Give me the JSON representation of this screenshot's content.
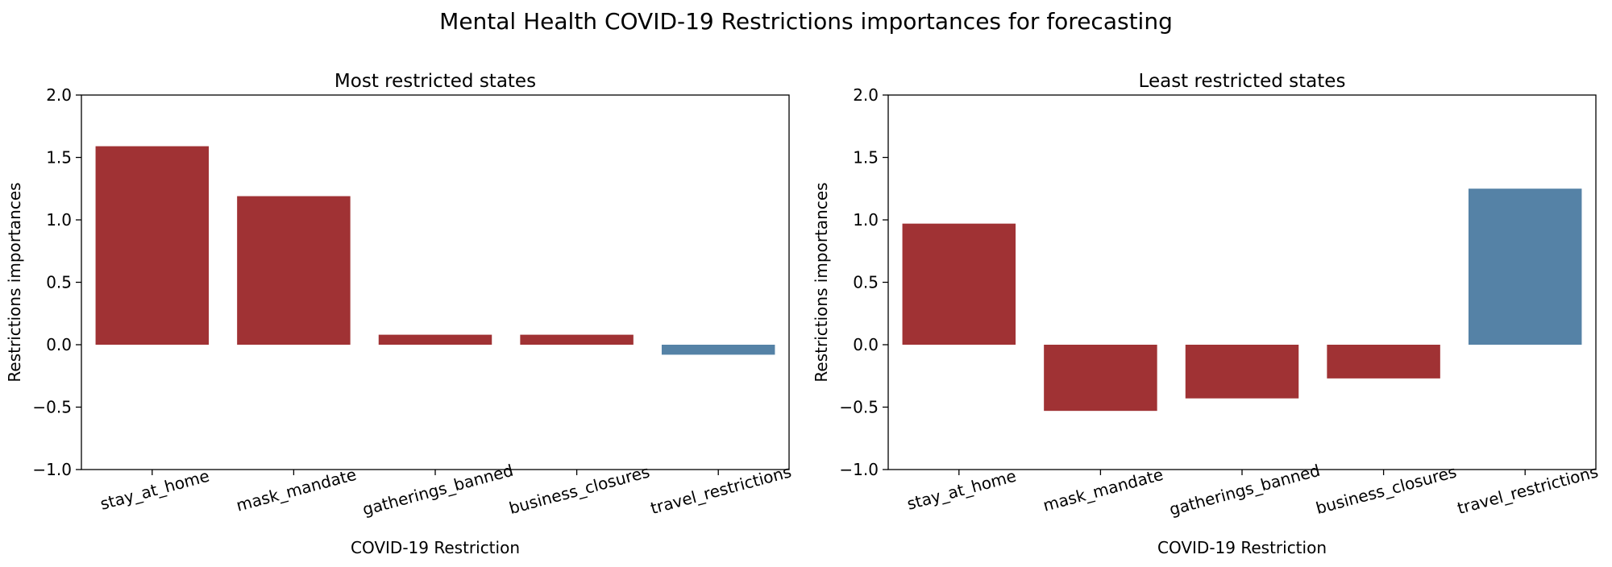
{
  "figure": {
    "suptitle": "Mental Health COVID-19 Restrictions importances for forecasting"
  },
  "colors": {
    "positive_highlight": "#a03234",
    "negative_highlight": "#5582a6",
    "axes": "#000000",
    "background": "#ffffff"
  },
  "chart_data": [
    {
      "type": "bar",
      "title": "Most restricted states",
      "xlabel": "COVID-19 Restriction",
      "ylabel": "Restrictions importances",
      "categories": [
        "stay_at_home",
        "mask_mandate",
        "gatherings_banned",
        "business_closures",
        "travel_restrictions"
      ],
      "values": [
        1.59,
        1.19,
        0.08,
        0.08,
        -0.08
      ],
      "bar_colors": [
        "#a03234",
        "#a03234",
        "#a03234",
        "#a03234",
        "#5582a6"
      ],
      "ylim": [
        -1.0,
        2.0
      ],
      "yticks": [
        -1.0,
        -0.5,
        0.0,
        0.5,
        1.0,
        1.5,
        2.0
      ],
      "ytick_labels": [
        "−1.0",
        "−0.5",
        "0.0",
        "0.5",
        "1.0",
        "1.5",
        "2.0"
      ],
      "xtick_rotation_deg": 15,
      "grid": false,
      "legend": "none"
    },
    {
      "type": "bar",
      "title": "Least restricted states",
      "xlabel": "COVID-19 Restriction",
      "ylabel": "Restrictions importances",
      "categories": [
        "stay_at_home",
        "mask_mandate",
        "gatherings_banned",
        "business_closures",
        "travel_restrictions"
      ],
      "values": [
        0.97,
        -0.53,
        -0.43,
        -0.27,
        1.25
      ],
      "bar_colors": [
        "#a03234",
        "#a03234",
        "#a03234",
        "#a03234",
        "#5582a6"
      ],
      "ylim": [
        -1.0,
        2.0
      ],
      "yticks": [
        -1.0,
        -0.5,
        0.0,
        0.5,
        1.0,
        1.5,
        2.0
      ],
      "ytick_labels": [
        "−1.0",
        "−0.5",
        "0.0",
        "0.5",
        "1.0",
        "1.5",
        "2.0"
      ],
      "xtick_rotation_deg": 15,
      "grid": false,
      "legend": "none"
    }
  ]
}
